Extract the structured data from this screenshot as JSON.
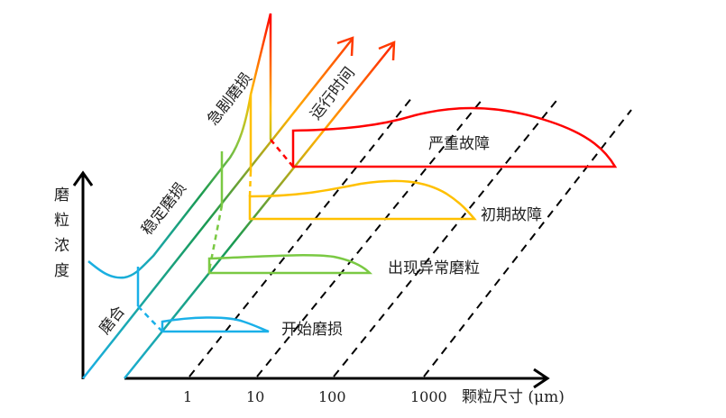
{
  "axes": {
    "y_label": [
      "磨",
      "粒",
      "浓",
      "度"
    ],
    "x_label": "颗粒尺寸 (μm)",
    "x_ticks": [
      "1",
      "10",
      "100",
      "1000"
    ],
    "time_label": "运行时间"
  },
  "stages": {
    "running_in": "磨合",
    "stable": "稳定磨损",
    "severe": "急剧磨损"
  },
  "distributions": {
    "start": "开始磨损",
    "abnormal": "出现异常磨粒",
    "early_fault": "初期故障",
    "serious_fault": "严重故障"
  },
  "colors": {
    "cyan": "#1ab0e8",
    "green": "#7ac943",
    "dark_green": "#1a9a50",
    "yellow": "#ffc000",
    "orange": "#ff8a1a",
    "red": "#ff0000",
    "axis": "#000000"
  }
}
